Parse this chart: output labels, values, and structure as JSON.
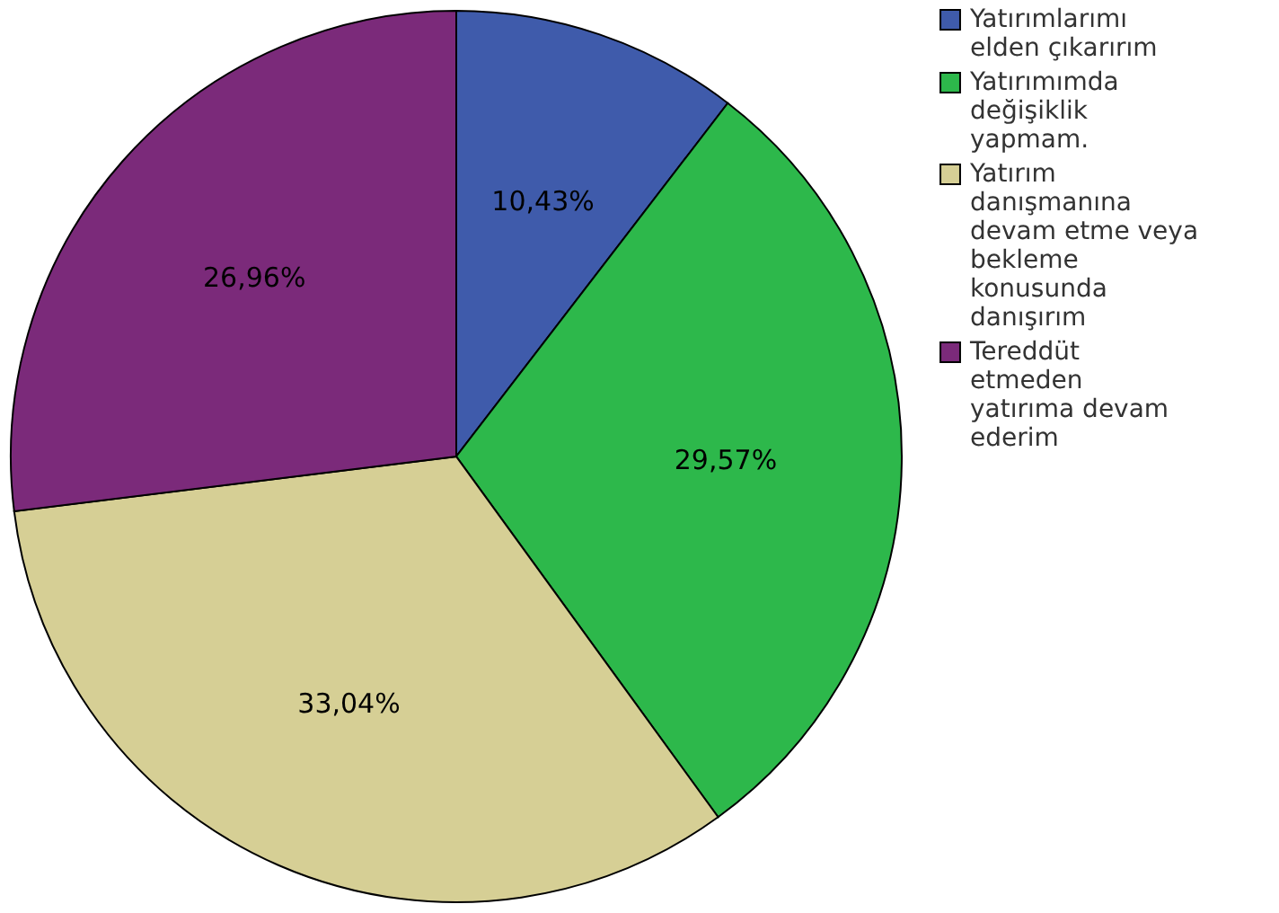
{
  "chart_data": {
    "type": "pie",
    "categories": [
      "Yatırımlarımı elden çıkarırım",
      "Yatırımımda değişiklik yapmam.",
      "Yatırım danışmanına devam etme veya bekleme konusunda danışırım",
      "Tereddüt etmeden yatırıma devam ederim"
    ],
    "values": [
      10.43,
      29.57,
      33.04,
      26.96
    ],
    "colors": [
      "#3f5bab",
      "#2db84b",
      "#d6cf95",
      "#7b2a7a"
    ],
    "value_labels": [
      "10,43%",
      "29,57%",
      "33,04%",
      "26,96%"
    ],
    "legend": "top right"
  }
}
